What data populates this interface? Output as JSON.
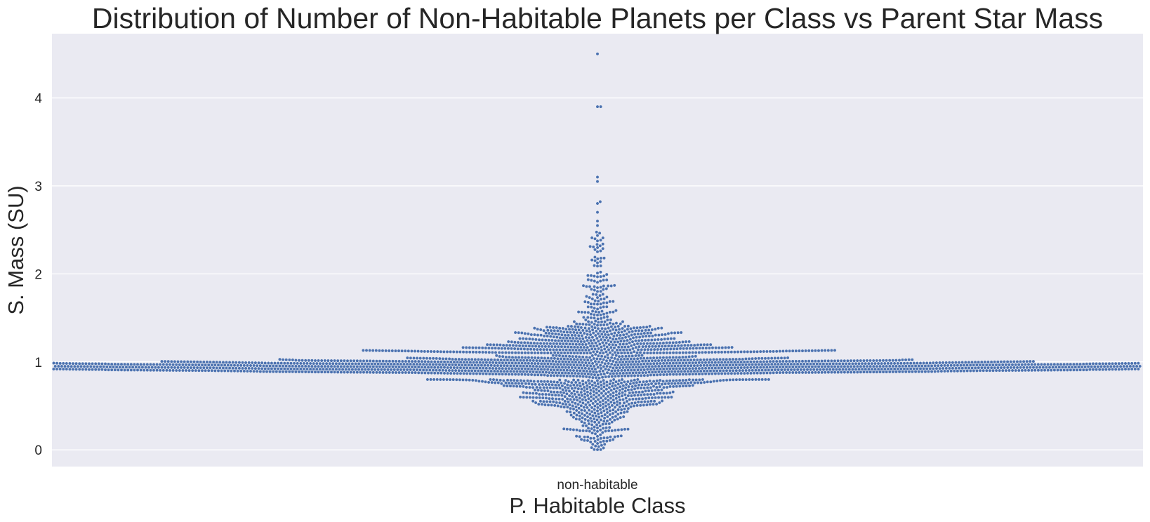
{
  "chart_data": {
    "type": "swarm",
    "title": "Distribution of Number of Non-Habitable Planets per Class vs Parent Star Mass",
    "xlabel": "P. Habitable Class",
    "ylabel": "S. Mass (SU)",
    "categories": [
      "non-habitable"
    ],
    "ylim": [
      -0.19,
      4.73
    ],
    "yticks": [
      "0",
      "1",
      "2",
      "3",
      "4"
    ],
    "grid": true,
    "legend": "none",
    "point_color": "#4c72b0",
    "plot_background": "#eaeaf2",
    "series": [
      {
        "category": "non-habitable",
        "approx_count": 3300,
        "distribution": [
          {
            "range": [
              0.0,
              0.5
            ],
            "count": 170
          },
          {
            "range": [
              0.5,
              0.8
            ],
            "count": 450
          },
          {
            "range": [
              0.8,
              1.1
            ],
            "count": 2000
          },
          {
            "range": [
              1.1,
              1.4
            ],
            "count": 560
          },
          {
            "range": [
              1.4,
              1.8
            ],
            "count": 90
          },
          {
            "range": [
              1.8,
              2.5
            ],
            "count": 60
          }
        ],
        "outliers": [
          2.55,
          2.6,
          2.7,
          2.8,
          2.82,
          3.05,
          3.1,
          3.9,
          3.9,
          4.5
        ]
      }
    ]
  }
}
